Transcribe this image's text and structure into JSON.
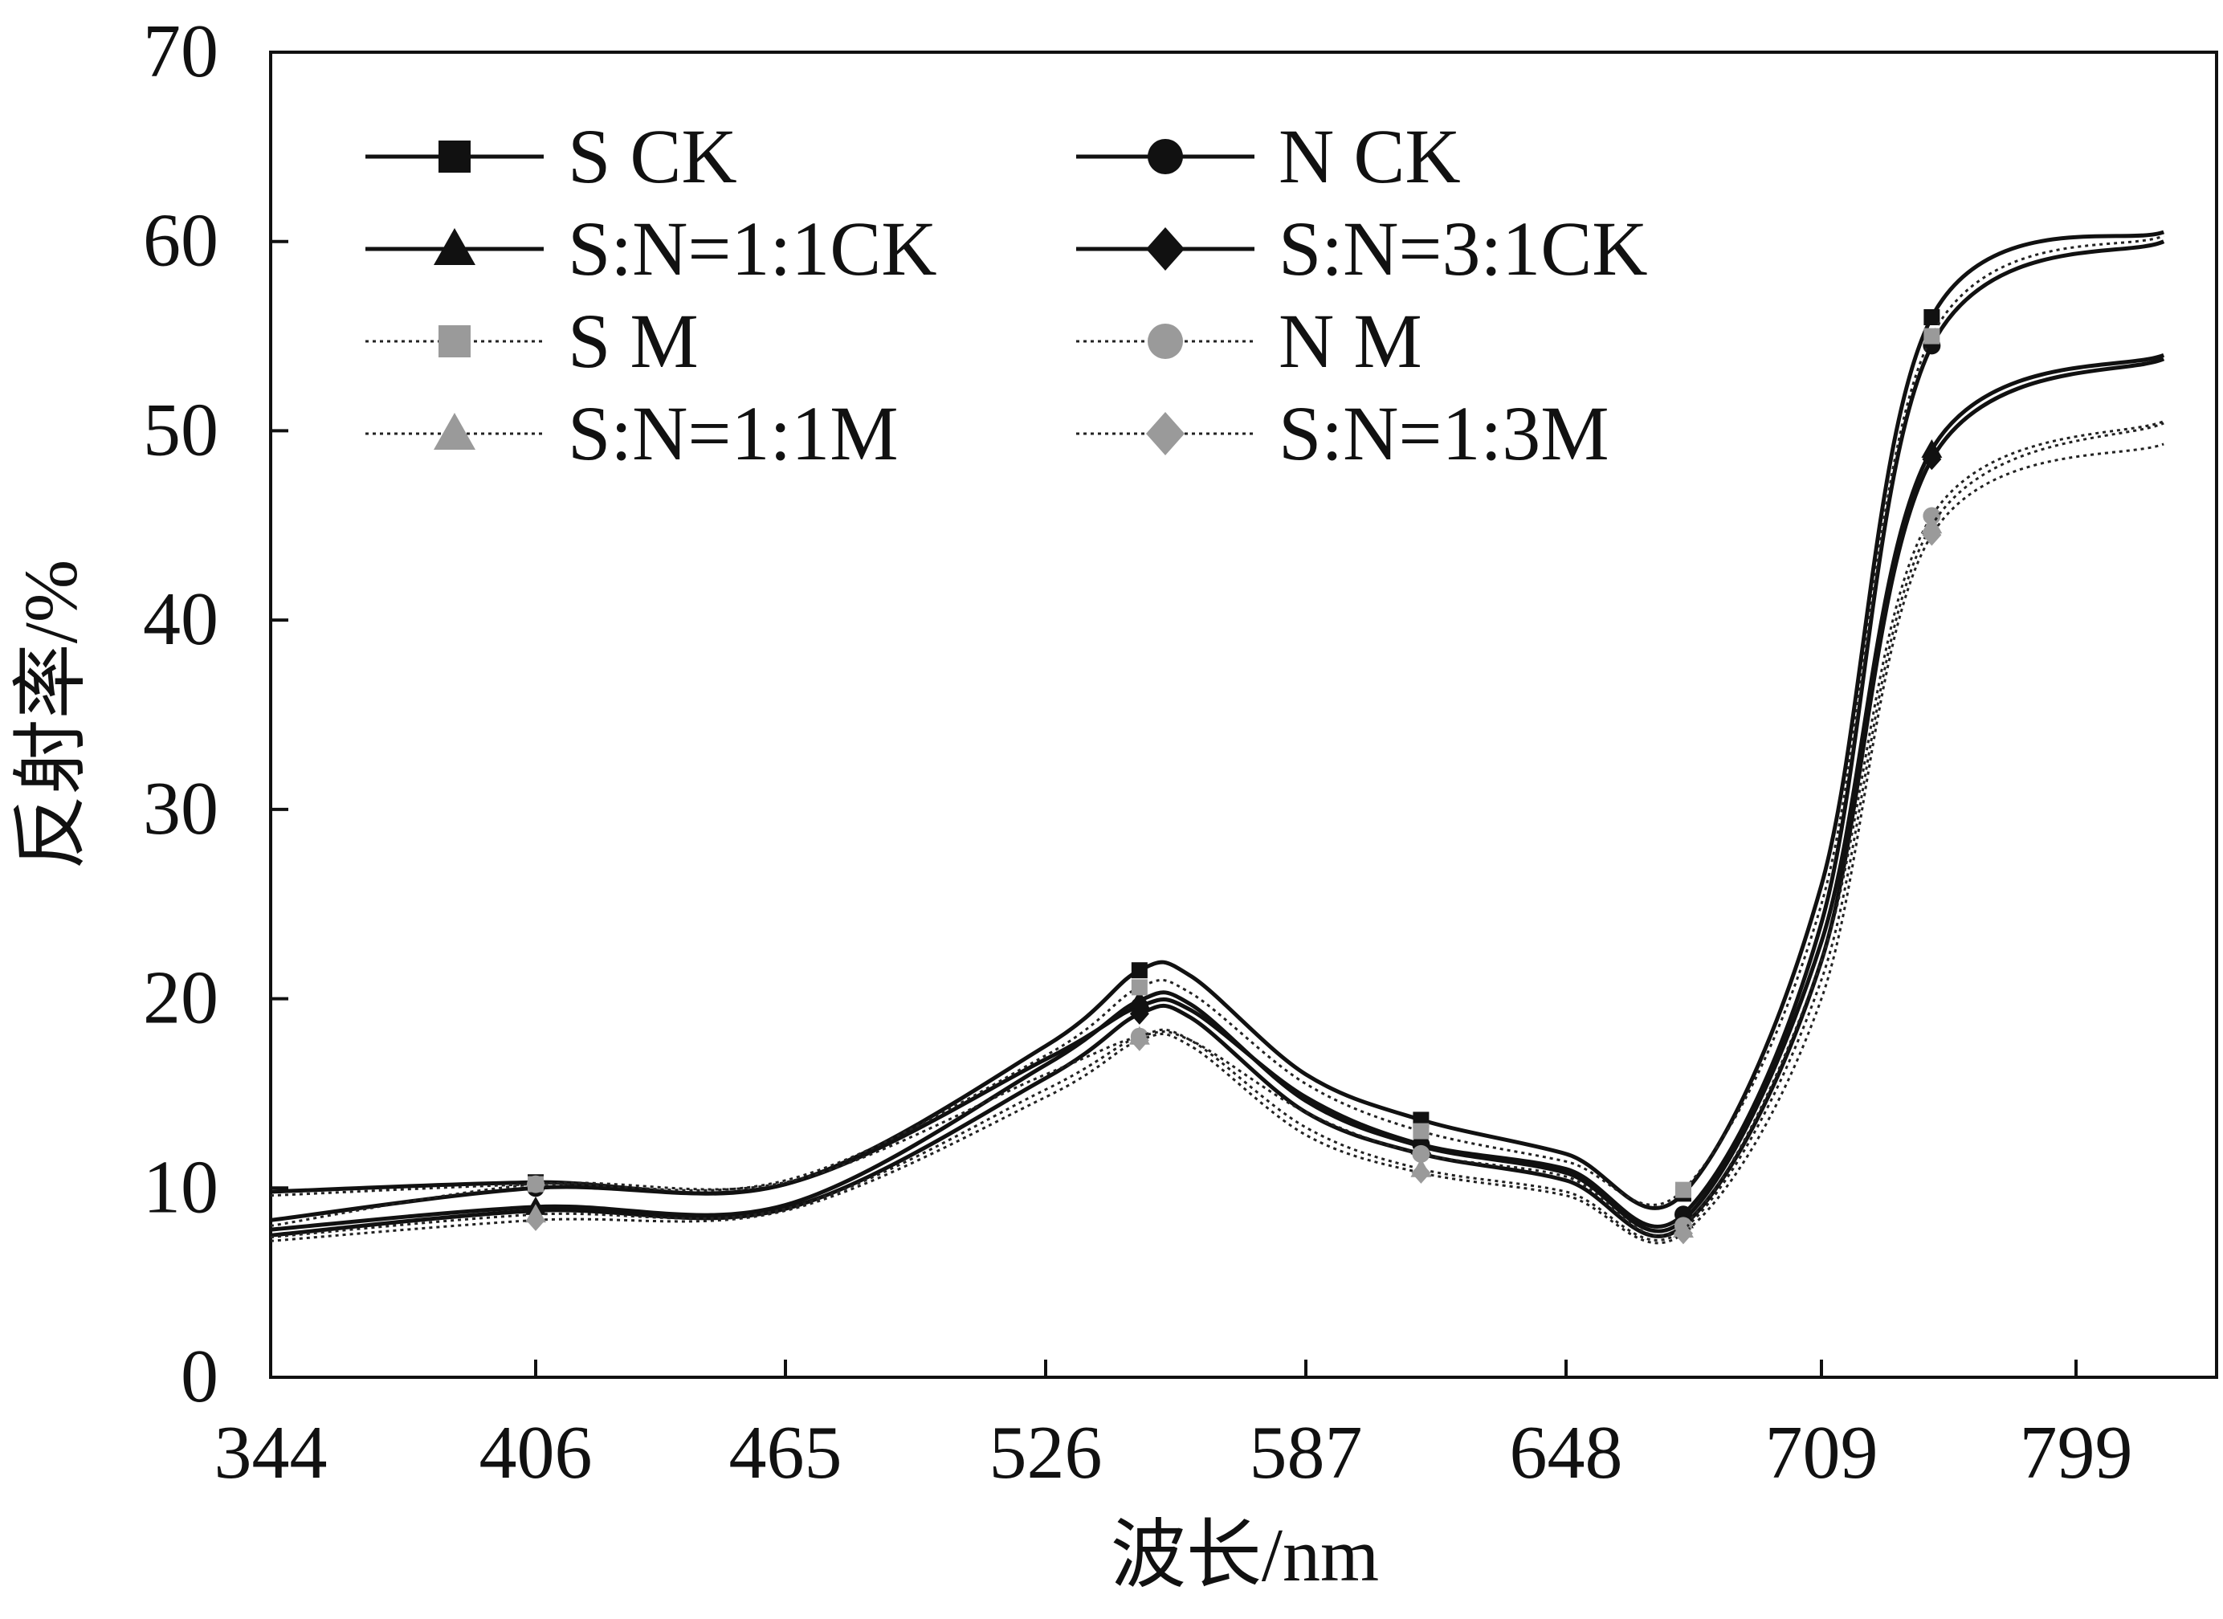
{
  "chart_data": {
    "type": "line",
    "title": "",
    "xlabel": "波长/nm",
    "ylabel": "反射率/%",
    "ylim": [
      0,
      70
    ],
    "yticks": [
      "0",
      "10",
      "20",
      "30",
      "40",
      "50",
      "60",
      "70"
    ],
    "xticks": [
      "344",
      "406",
      "465",
      "526",
      "587",
      "648",
      "709",
      "799"
    ],
    "grid": false,
    "legend_position": "top-left",
    "x": [
      "344",
      "406",
      "465",
      "526",
      "548",
      "560",
      "587",
      "614",
      "648",
      "676",
      "709",
      "748",
      "830"
    ],
    "series": [
      {
        "name": "S CK",
        "color": "#111111",
        "dashed": false,
        "marker": "square",
        "values": [
          9.8,
          10.3,
          10.2,
          17.5,
          21.5,
          21.2,
          16.0,
          13.6,
          11.8,
          9.7,
          26,
          56,
          60.5
        ]
      },
      {
        "name": "N CK",
        "color": "#111111",
        "dashed": false,
        "marker": "circle",
        "values": [
          8.3,
          10.0,
          10.2,
          16.8,
          19.6,
          19.4,
          14.8,
          12.3,
          11.0,
          8.6,
          24,
          54.5,
          60.0
        ]
      },
      {
        "name": "S:N=1:1CK",
        "color": "#111111",
        "dashed": false,
        "marker": "triangle",
        "values": [
          7.8,
          9.0,
          9.1,
          16.5,
          19.9,
          19.7,
          14.6,
          12.2,
          10.8,
          8.3,
          23,
          49,
          54.0
        ]
      },
      {
        "name": "S:N=3:1CK",
        "color": "#111111",
        "dashed": false,
        "marker": "diamond",
        "values": [
          7.5,
          8.8,
          8.9,
          15.8,
          19.2,
          19.0,
          14.0,
          11.8,
          10.4,
          8.0,
          22,
          48.5,
          53.8
        ]
      },
      {
        "name": "S M",
        "color": "#9a9a9a",
        "dashed": true,
        "marker": "square",
        "values": [
          9.6,
          10.2,
          10.4,
          17.0,
          20.6,
          20.3,
          15.5,
          13.0,
          11.4,
          9.9,
          25,
          55,
          60.3
        ]
      },
      {
        "name": "N M",
        "color": "#9a9a9a",
        "dashed": true,
        "marker": "circle",
        "values": [
          8.0,
          10.2,
          10.3,
          16.0,
          18.0,
          17.8,
          14.0,
          11.8,
          10.6,
          8.0,
          22,
          45.5,
          50.5
        ]
      },
      {
        "name": "S:N=1:1M",
        "color": "#9a9a9a",
        "dashed": true,
        "marker": "triangle",
        "values": [
          7.4,
          8.6,
          8.9,
          15.2,
          18.0,
          17.8,
          13.2,
          11.0,
          9.8,
          7.8,
          21,
          45.0,
          50.4
        ]
      },
      {
        "name": "S:N=1:3M",
        "color": "#9a9a9a",
        "dashed": true,
        "marker": "diamond",
        "values": [
          7.2,
          8.3,
          8.8,
          14.8,
          17.8,
          17.5,
          12.8,
          10.8,
          9.6,
          7.6,
          20,
          44.5,
          49.3
        ]
      }
    ]
  }
}
